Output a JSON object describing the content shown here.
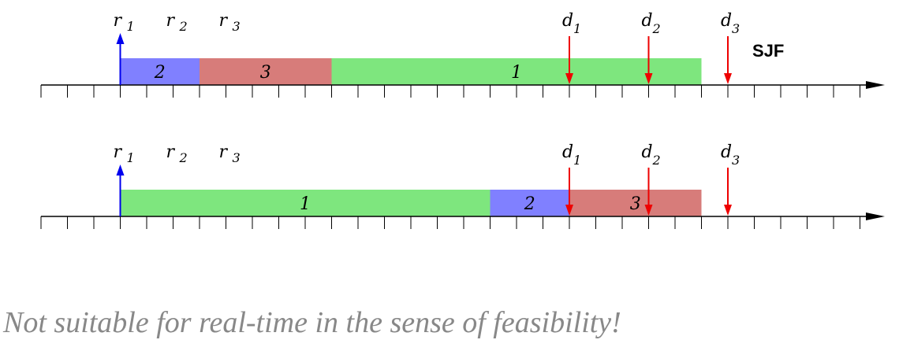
{
  "diagram_label": "SJF",
  "caption": "Not suitable for real-time in the sense of feasibility!",
  "colors": {
    "job1": "#7ee67e",
    "job2": "#8080ff",
    "job3": "#d77c7a",
    "release": "#0000ee",
    "deadline": "#ee0000"
  },
  "release_labels": [
    {
      "base": "r",
      "sub": "1"
    },
    {
      "base": "r",
      "sub": "2"
    },
    {
      "base": "r",
      "sub": "3"
    }
  ],
  "deadline_labels": [
    {
      "base": "d",
      "sub": "1"
    },
    {
      "base": "d",
      "sub": "2"
    },
    {
      "base": "d",
      "sub": "3"
    }
  ],
  "timelines": [
    {
      "name": "sjf",
      "blocks": [
        {
          "job": "2",
          "start": 3,
          "end": 6
        },
        {
          "job": "3",
          "start": 6,
          "end": 11
        },
        {
          "job": "1",
          "start": 11,
          "end": 25
        }
      ]
    },
    {
      "name": "alternative",
      "blocks": [
        {
          "job": "1",
          "start": 3,
          "end": 17
        },
        {
          "job": "2",
          "start": 17,
          "end": 20
        },
        {
          "job": "3",
          "start": 20,
          "end": 25
        }
      ]
    }
  ],
  "release_times": [
    3,
    5,
    7
  ],
  "deadline_times": [
    20,
    23,
    26
  ]
}
